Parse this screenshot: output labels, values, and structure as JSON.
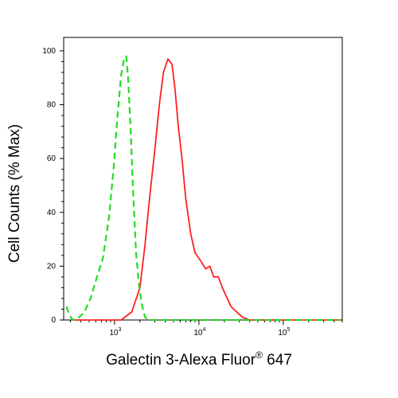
{
  "chart_data": {
    "type": "line",
    "xlabel": "Galectin 3-Alexa Fluor",
    "xlabel_superscript": "®",
    "xlabel_suffix": " 647",
    "ylabel": "Cell Counts (% Max)",
    "x_scale": "log",
    "xlim": [
      250,
      500000
    ],
    "ylim": [
      0,
      105
    ],
    "y_ticks": [
      0,
      20,
      40,
      60,
      80,
      100
    ],
    "x_ticks": [
      {
        "value": 1000,
        "base": "10",
        "exp": "3"
      },
      {
        "value": 10000,
        "base": "10",
        "exp": "4"
      },
      {
        "value": 100000,
        "base": "10",
        "exp": "5"
      }
    ],
    "grid": false,
    "series": [
      {
        "color": "#ff2020",
        "style": "solid",
        "points": [
          [
            330,
            0
          ],
          [
            700,
            0
          ],
          [
            1200,
            0
          ],
          [
            1600,
            3
          ],
          [
            2000,
            12
          ],
          [
            2300,
            28
          ],
          [
            2600,
            45
          ],
          [
            3000,
            63
          ],
          [
            3400,
            80
          ],
          [
            3800,
            92
          ],
          [
            4300,
            97
          ],
          [
            4800,
            95
          ],
          [
            5200,
            86
          ],
          [
            5700,
            72
          ],
          [
            6300,
            60
          ],
          [
            7000,
            45
          ],
          [
            8000,
            32
          ],
          [
            9000,
            25
          ],
          [
            10500,
            22
          ],
          [
            12000,
            19
          ],
          [
            13500,
            20
          ],
          [
            15000,
            16
          ],
          [
            17000,
            16
          ],
          [
            19000,
            12
          ],
          [
            21000,
            9
          ],
          [
            24000,
            5
          ],
          [
            28000,
            3
          ],
          [
            33000,
            1
          ],
          [
            40000,
            0
          ],
          [
            100000,
            0
          ],
          [
            470000,
            0
          ]
        ]
      },
      {
        "color": "#22dd22",
        "style": "dashed",
        "points": [
          [
            270,
            5
          ],
          [
            290,
            2
          ],
          [
            320,
            0
          ],
          [
            380,
            1
          ],
          [
            440,
            3
          ],
          [
            520,
            8
          ],
          [
            620,
            16
          ],
          [
            730,
            23
          ],
          [
            860,
            38
          ],
          [
            980,
            57
          ],
          [
            1080,
            75
          ],
          [
            1200,
            91
          ],
          [
            1300,
            97
          ],
          [
            1380,
            98
          ],
          [
            1450,
            90
          ],
          [
            1550,
            72
          ],
          [
            1650,
            50
          ],
          [
            1800,
            25
          ],
          [
            1950,
            13
          ],
          [
            2100,
            6
          ],
          [
            2300,
            1
          ],
          [
            2600,
            0
          ],
          [
            10000,
            0
          ],
          [
            470000,
            0
          ]
        ]
      }
    ]
  }
}
